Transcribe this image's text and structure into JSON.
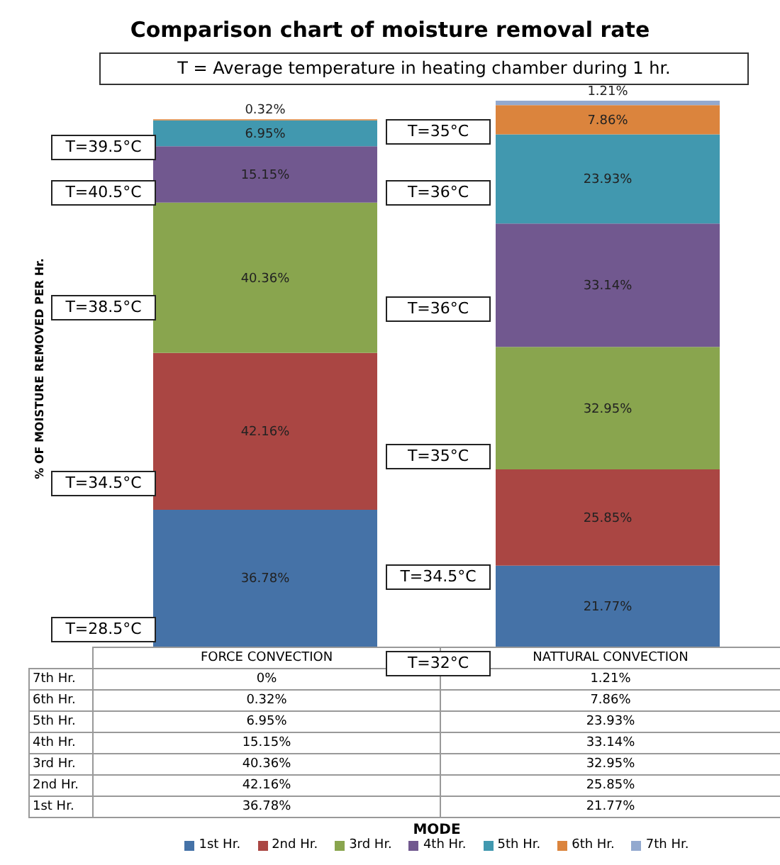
{
  "chart_data": {
    "type": "bar",
    "stacked": true,
    "title": "Comparison chart of moisture removal rate",
    "subtitle": "T = Average temperature in heating chamber during 1 hr.",
    "ylabel": "% OF MOISTURE REMOVED PER Hr.",
    "categories": [
      "FORCE CONVECTION",
      "NATTURAL CONVECTION"
    ],
    "series": [
      {
        "name": "1st Hr.",
        "color": "#4572a7",
        "values": [
          36.78,
          21.77
        ],
        "value_labels": [
          "36.78%",
          "21.77%"
        ]
      },
      {
        "name": "2nd Hr.",
        "color": "#aa4643",
        "values": [
          42.16,
          25.85
        ],
        "value_labels": [
          "42.16%",
          "25.85%"
        ]
      },
      {
        "name": "3rd Hr.",
        "color": "#89a54e",
        "values": [
          40.36,
          32.95
        ],
        "value_labels": [
          "40.36%",
          "32.95%"
        ]
      },
      {
        "name": "4th Hr.",
        "color": "#71588f",
        "values": [
          15.15,
          33.14
        ],
        "value_labels": [
          "15.15%",
          "33.14%"
        ]
      },
      {
        "name": "5th Hr.",
        "color": "#4198af",
        "values": [
          6.95,
          23.93
        ],
        "value_labels": [
          "6.95%",
          "23.93%"
        ]
      },
      {
        "name": "6th Hr.",
        "color": "#db843d",
        "values": [
          0.32,
          7.86
        ],
        "value_labels": [
          "0.32%",
          "7.86%"
        ]
      },
      {
        "name": "7th Hr.",
        "color": "#93a9cf",
        "values": [
          0,
          1.21
        ],
        "value_labels": [
          "0%",
          "1.21%"
        ]
      }
    ],
    "annotations": [
      "T=28.5°C",
      "T=34.5°C",
      "T=38.5°C",
      "T=40.5°C",
      "T=39.5°C",
      "T=32°C",
      "T=34.5°C",
      "T=35°C",
      "T=36°C",
      "T=36°C",
      "T=35°C",
      "MODE"
    ],
    "legend": "bottom",
    "grid": false
  }
}
